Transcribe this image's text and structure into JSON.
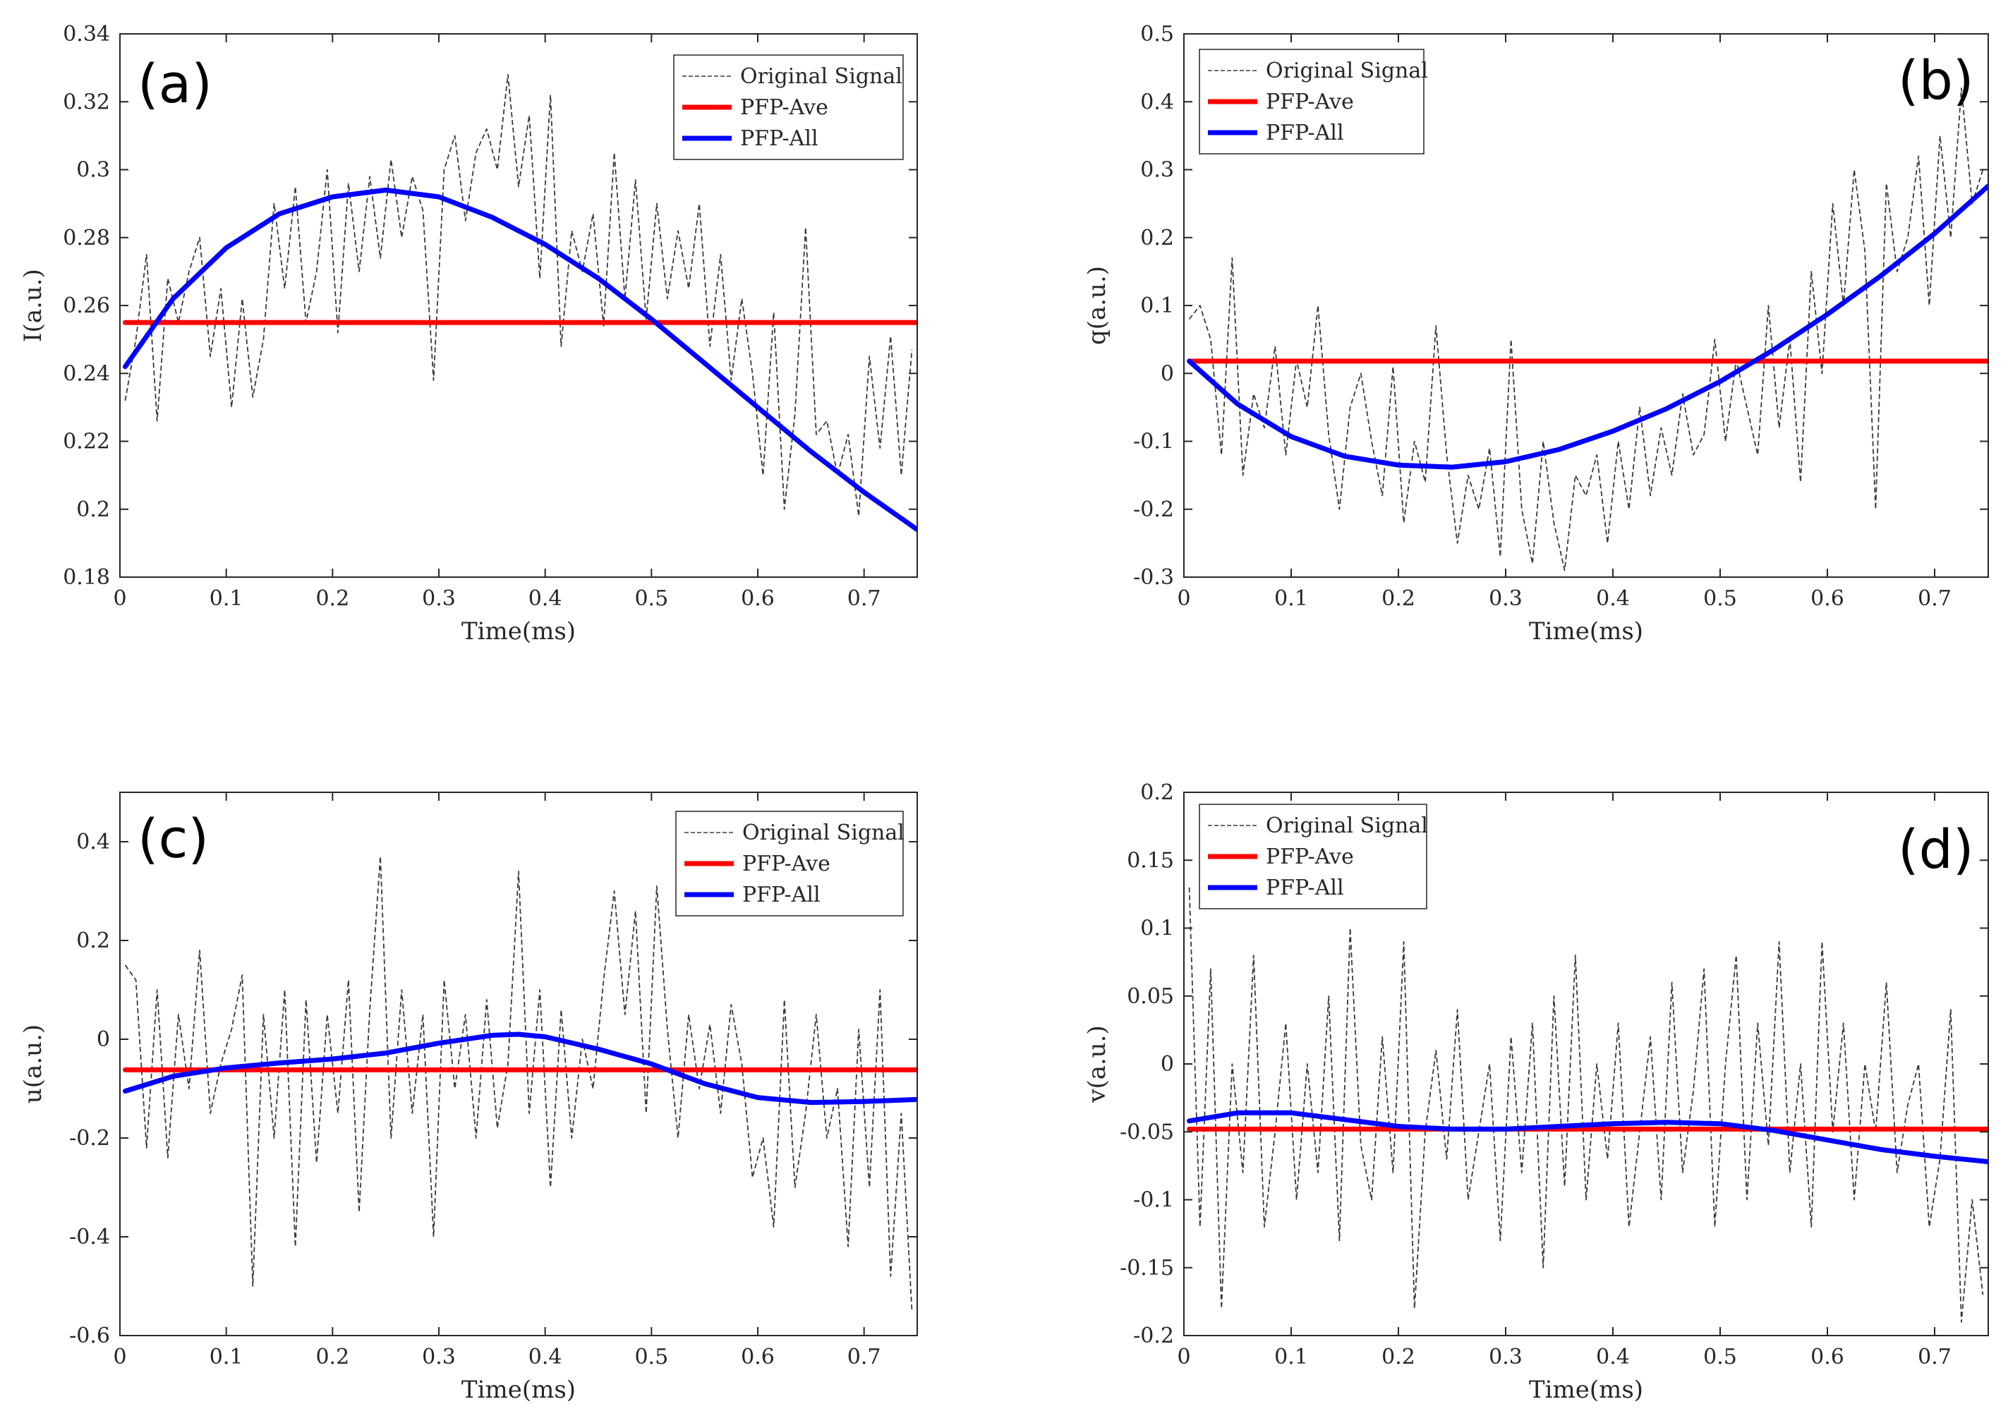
{
  "colors": {
    "signal": "#3a3a3a",
    "ave": "#ff0000",
    "all": "#0000ff",
    "axis": "#262626"
  },
  "chart_data": [
    {
      "type": "line",
      "panel_label": "(a)",
      "xlabel": "Time(ms)",
      "ylabel": "I(a.u.)",
      "xlim": [
        0,
        0.75
      ],
      "ylim": [
        0.18,
        0.34
      ],
      "xticks": [
        0,
        0.1,
        0.2,
        0.3,
        0.4,
        0.5,
        0.6,
        0.7
      ],
      "xtick_labels": [
        "0",
        "0.1",
        "0.2",
        "0.3",
        "0.4",
        "0.5",
        "0.6",
        "0.7"
      ],
      "yticks": [
        0.18,
        0.2,
        0.22,
        0.24,
        0.26,
        0.28,
        0.3,
        0.32,
        0.34
      ],
      "ytick_labels": [
        "0.18",
        "0.2",
        "0.22",
        "0.24",
        "0.26",
        "0.28",
        "0.3",
        "0.32",
        "0.34"
      ],
      "legend": [
        "Original Signal",
        "PFP-Ave",
        "PFP-All"
      ],
      "legend_position": "top-right",
      "series": [
        {
          "name": "Original Signal",
          "style": "dashed-thin",
          "x": [
            0.005,
            0.015,
            0.025,
            0.035,
            0.045,
            0.055,
            0.065,
            0.075,
            0.085,
            0.095,
            0.105,
            0.115,
            0.125,
            0.135,
            0.145,
            0.155,
            0.165,
            0.175,
            0.185,
            0.195,
            0.205,
            0.215,
            0.225,
            0.235,
            0.245,
            0.255,
            0.265,
            0.275,
            0.285,
            0.295,
            0.305,
            0.315,
            0.325,
            0.335,
            0.345,
            0.355,
            0.365,
            0.375,
            0.385,
            0.395,
            0.405,
            0.415,
            0.425,
            0.435,
            0.445,
            0.455,
            0.465,
            0.475,
            0.485,
            0.495,
            0.505,
            0.515,
            0.525,
            0.535,
            0.545,
            0.555,
            0.565,
            0.575,
            0.585,
            0.595,
            0.605,
            0.615,
            0.625,
            0.635,
            0.645,
            0.655,
            0.665,
            0.675,
            0.685,
            0.695,
            0.705,
            0.715,
            0.725,
            0.735,
            0.745
          ],
          "y": [
            0.232,
            0.25,
            0.275,
            0.226,
            0.268,
            0.255,
            0.27,
            0.28,
            0.245,
            0.265,
            0.23,
            0.262,
            0.233,
            0.25,
            0.29,
            0.265,
            0.295,
            0.255,
            0.27,
            0.3,
            0.252,
            0.296,
            0.27,
            0.298,
            0.274,
            0.303,
            0.28,
            0.298,
            0.288,
            0.238,
            0.3,
            0.31,
            0.285,
            0.305,
            0.312,
            0.3,
            0.328,
            0.295,
            0.316,
            0.268,
            0.322,
            0.248,
            0.282,
            0.27,
            0.287,
            0.254,
            0.305,
            0.262,
            0.297,
            0.256,
            0.29,
            0.262,
            0.282,
            0.265,
            0.29,
            0.248,
            0.275,
            0.238,
            0.262,
            0.24,
            0.21,
            0.258,
            0.2,
            0.228,
            0.283,
            0.222,
            0.226,
            0.21,
            0.222,
            0.198,
            0.245,
            0.218,
            0.251,
            0.21,
            0.247
          ]
        },
        {
          "name": "PFP-Ave",
          "style": "solid-thick",
          "x": [
            0.005,
            0.75
          ],
          "y": [
            0.255,
            0.255
          ]
        },
        {
          "name": "PFP-All",
          "style": "solid-thick",
          "x": [
            0.005,
            0.05,
            0.1,
            0.15,
            0.2,
            0.25,
            0.3,
            0.35,
            0.4,
            0.45,
            0.5,
            0.55,
            0.6,
            0.65,
            0.7,
            0.75
          ],
          "y": [
            0.242,
            0.262,
            0.277,
            0.287,
            0.292,
            0.294,
            0.292,
            0.286,
            0.278,
            0.268,
            0.256,
            0.243,
            0.23,
            0.217,
            0.205,
            0.194
          ]
        }
      ]
    },
    {
      "type": "line",
      "panel_label": "(b)",
      "xlabel": "Time(ms)",
      "ylabel": "q(a.u.)",
      "xlim": [
        0,
        0.75
      ],
      "ylim": [
        -0.3,
        0.5
      ],
      "xticks": [
        0,
        0.1,
        0.2,
        0.3,
        0.4,
        0.5,
        0.6,
        0.7
      ],
      "xtick_labels": [
        "0",
        "0.1",
        "0.2",
        "0.3",
        "0.4",
        "0.5",
        "0.6",
        "0.7"
      ],
      "yticks": [
        -0.3,
        -0.2,
        -0.1,
        0,
        0.1,
        0.2,
        0.3,
        0.4,
        0.5
      ],
      "ytick_labels": [
        "-0.3",
        "-0.2",
        "-0.1",
        "0",
        "0.1",
        "0.2",
        "0.3",
        "0.4",
        "0.5"
      ],
      "legend": [
        "Original Signal",
        "PFP-Ave",
        "PFP-All"
      ],
      "legend_position": "top-left",
      "series": [
        {
          "name": "Original Signal",
          "style": "dashed-thin",
          "x": [
            0.005,
            0.015,
            0.025,
            0.035,
            0.045,
            0.055,
            0.065,
            0.075,
            0.085,
            0.095,
            0.105,
            0.115,
            0.125,
            0.135,
            0.145,
            0.155,
            0.165,
            0.175,
            0.185,
            0.195,
            0.205,
            0.215,
            0.225,
            0.235,
            0.245,
            0.255,
            0.265,
            0.275,
            0.285,
            0.295,
            0.305,
            0.315,
            0.325,
            0.335,
            0.345,
            0.355,
            0.365,
            0.375,
            0.385,
            0.395,
            0.405,
            0.415,
            0.425,
            0.435,
            0.445,
            0.455,
            0.465,
            0.475,
            0.485,
            0.495,
            0.505,
            0.515,
            0.525,
            0.535,
            0.545,
            0.555,
            0.565,
            0.575,
            0.585,
            0.595,
            0.605,
            0.615,
            0.625,
            0.635,
            0.645,
            0.655,
            0.665,
            0.675,
            0.685,
            0.695,
            0.705,
            0.715,
            0.725,
            0.735,
            0.745
          ],
          "y": [
            0.08,
            0.1,
            0.05,
            -0.12,
            0.17,
            -0.15,
            -0.03,
            -0.08,
            0.04,
            -0.12,
            0.02,
            -0.05,
            0.1,
            -0.09,
            -0.2,
            -0.05,
            0.0,
            -0.1,
            -0.18,
            0.01,
            -0.22,
            -0.1,
            -0.16,
            0.07,
            -0.12,
            -0.25,
            -0.15,
            -0.2,
            -0.11,
            -0.27,
            0.05,
            -0.2,
            -0.28,
            -0.1,
            -0.22,
            -0.29,
            -0.15,
            -0.18,
            -0.12,
            -0.25,
            -0.1,
            -0.2,
            -0.05,
            -0.18,
            -0.08,
            -0.15,
            -0.03,
            -0.12,
            -0.09,
            0.05,
            -0.1,
            0.02,
            -0.05,
            -0.12,
            0.1,
            -0.08,
            0.05,
            -0.16,
            0.15,
            0.0,
            0.25,
            0.1,
            0.3,
            0.18,
            -0.2,
            0.28,
            0.15,
            0.2,
            0.32,
            0.1,
            0.35,
            0.2,
            0.42,
            0.25,
            0.3
          ]
        },
        {
          "name": "PFP-Ave",
          "style": "solid-thick",
          "x": [
            0.005,
            0.75
          ],
          "y": [
            0.018,
            0.018
          ]
        },
        {
          "name": "PFP-All",
          "style": "solid-thick",
          "x": [
            0.005,
            0.05,
            0.1,
            0.15,
            0.2,
            0.25,
            0.3,
            0.35,
            0.4,
            0.45,
            0.5,
            0.55,
            0.6,
            0.65,
            0.7,
            0.75
          ],
          "y": [
            0.018,
            -0.045,
            -0.093,
            -0.122,
            -0.135,
            -0.138,
            -0.13,
            -0.112,
            -0.085,
            -0.052,
            -0.012,
            0.035,
            0.087,
            0.144,
            0.206,
            0.276
          ]
        }
      ]
    },
    {
      "type": "line",
      "panel_label": "(c)",
      "xlabel": "Time(ms)",
      "ylabel": "u(a.u.)",
      "xlim": [
        0,
        0.75
      ],
      "ylim": [
        -0.6,
        0.5
      ],
      "xticks": [
        0,
        0.1,
        0.2,
        0.3,
        0.4,
        0.5,
        0.6,
        0.7
      ],
      "xtick_labels": [
        "0",
        "0.1",
        "0.2",
        "0.3",
        "0.4",
        "0.5",
        "0.6",
        "0.7"
      ],
      "yticks": [
        -0.6,
        -0.4,
        -0.2,
        0,
        0.2,
        0.4
      ],
      "ytick_labels": [
        "-0.6",
        "-0.4",
        "-0.2",
        "0",
        "0.2",
        "0.4"
      ],
      "legend": [
        "Original Signal",
        "PFP-Ave",
        "PFP-All"
      ],
      "legend_position": "top-right",
      "series": [
        {
          "name": "Original Signal",
          "style": "dashed-thin",
          "x": [
            0.005,
            0.015,
            0.025,
            0.035,
            0.045,
            0.055,
            0.065,
            0.075,
            0.085,
            0.095,
            0.105,
            0.115,
            0.125,
            0.135,
            0.145,
            0.155,
            0.165,
            0.175,
            0.185,
            0.195,
            0.205,
            0.215,
            0.225,
            0.235,
            0.245,
            0.255,
            0.265,
            0.275,
            0.285,
            0.295,
            0.305,
            0.315,
            0.325,
            0.335,
            0.345,
            0.355,
            0.365,
            0.375,
            0.385,
            0.395,
            0.405,
            0.415,
            0.425,
            0.435,
            0.445,
            0.455,
            0.465,
            0.475,
            0.485,
            0.495,
            0.505,
            0.515,
            0.525,
            0.535,
            0.545,
            0.555,
            0.565,
            0.575,
            0.585,
            0.595,
            0.605,
            0.615,
            0.625,
            0.635,
            0.645,
            0.655,
            0.665,
            0.675,
            0.685,
            0.695,
            0.705,
            0.715,
            0.725,
            0.735,
            0.745
          ],
          "y": [
            0.15,
            0.12,
            -0.22,
            0.1,
            -0.24,
            0.05,
            -0.1,
            0.18,
            -0.15,
            -0.05,
            0.02,
            0.13,
            -0.5,
            0.05,
            -0.2,
            0.1,
            -0.42,
            0.08,
            -0.25,
            0.05,
            -0.15,
            0.12,
            -0.35,
            0.06,
            0.37,
            -0.2,
            0.1,
            -0.15,
            0.05,
            -0.4,
            0.12,
            -0.1,
            0.05,
            -0.2,
            0.08,
            -0.18,
            -0.05,
            0.34,
            -0.15,
            0.1,
            -0.3,
            0.06,
            -0.2,
            0.0,
            -0.1,
            0.12,
            0.3,
            0.05,
            0.26,
            -0.15,
            0.31,
            0.02,
            -0.2,
            0.05,
            -0.1,
            0.03,
            -0.15,
            0.07,
            -0.05,
            -0.28,
            -0.2,
            -0.38,
            0.08,
            -0.3,
            -0.15,
            0.05,
            -0.2,
            -0.1,
            -0.42,
            0.02,
            -0.3,
            0.1,
            -0.48,
            -0.15,
            -0.55
          ]
        },
        {
          "name": "PFP-Ave",
          "style": "solid-thick",
          "x": [
            0.005,
            0.75
          ],
          "y": [
            -0.062,
            -0.062
          ]
        },
        {
          "name": "PFP-All",
          "style": "solid-thick",
          "x": [
            0.005,
            0.05,
            0.1,
            0.15,
            0.2,
            0.25,
            0.3,
            0.35,
            0.375,
            0.4,
            0.45,
            0.5,
            0.55,
            0.6,
            0.65,
            0.7,
            0.75
          ],
          "y": [
            -0.105,
            -0.075,
            -0.058,
            -0.048,
            -0.04,
            -0.028,
            -0.008,
            0.008,
            0.01,
            0.005,
            -0.02,
            -0.05,
            -0.09,
            -0.118,
            -0.128,
            -0.126,
            -0.122
          ]
        }
      ]
    },
    {
      "type": "line",
      "panel_label": "(d)",
      "xlabel": "Time(ms)",
      "ylabel": "v(a.u.)",
      "xlim": [
        0,
        0.75
      ],
      "ylim": [
        -0.2,
        0.2
      ],
      "xticks": [
        0,
        0.1,
        0.2,
        0.3,
        0.4,
        0.5,
        0.6,
        0.7
      ],
      "xtick_labels": [
        "0",
        "0.1",
        "0.2",
        "0.3",
        "0.4",
        "0.5",
        "0.6",
        "0.7"
      ],
      "yticks": [
        -0.2,
        -0.15,
        -0.1,
        -0.05,
        0,
        0.05,
        0.1,
        0.15,
        0.2
      ],
      "ytick_labels": [
        "-0.2",
        "-0.15",
        "-0.1",
        "-0.05",
        "0",
        "0.05",
        "0.1",
        "0.15",
        "0.2"
      ],
      "legend": [
        "Original Signal",
        "PFP-Ave",
        "PFP-All"
      ],
      "legend_position": "top-left",
      "series": [
        {
          "name": "Original Signal",
          "style": "dashed-thin",
          "x": [
            0.005,
            0.015,
            0.025,
            0.035,
            0.045,
            0.055,
            0.065,
            0.075,
            0.085,
            0.095,
            0.105,
            0.115,
            0.125,
            0.135,
            0.145,
            0.155,
            0.165,
            0.175,
            0.185,
            0.195,
            0.205,
            0.215,
            0.225,
            0.235,
            0.245,
            0.255,
            0.265,
            0.275,
            0.285,
            0.295,
            0.305,
            0.315,
            0.325,
            0.335,
            0.345,
            0.355,
            0.365,
            0.375,
            0.385,
            0.395,
            0.405,
            0.415,
            0.425,
            0.435,
            0.445,
            0.455,
            0.465,
            0.475,
            0.485,
            0.495,
            0.505,
            0.515,
            0.525,
            0.535,
            0.545,
            0.555,
            0.565,
            0.575,
            0.585,
            0.595,
            0.605,
            0.615,
            0.625,
            0.635,
            0.645,
            0.655,
            0.665,
            0.675,
            0.685,
            0.695,
            0.705,
            0.715,
            0.725,
            0.735,
            0.745
          ],
          "y": [
            0.13,
            -0.12,
            0.07,
            -0.18,
            0.0,
            -0.08,
            0.08,
            -0.12,
            -0.05,
            0.03,
            -0.1,
            0.0,
            -0.08,
            0.05,
            -0.13,
            0.1,
            -0.06,
            -0.1,
            0.02,
            -0.08,
            0.09,
            -0.18,
            -0.05,
            0.01,
            -0.07,
            0.04,
            -0.1,
            -0.05,
            0.0,
            -0.13,
            0.02,
            -0.08,
            0.03,
            -0.15,
            0.05,
            -0.09,
            0.08,
            -0.1,
            0.0,
            -0.07,
            0.03,
            -0.12,
            -0.05,
            0.02,
            -0.1,
            0.06,
            -0.08,
            -0.02,
            0.07,
            -0.12,
            0.0,
            0.08,
            -0.1,
            0.03,
            -0.06,
            0.09,
            -0.08,
            0.0,
            -0.12,
            0.09,
            -0.05,
            0.03,
            -0.1,
            0.0,
            -0.05,
            0.06,
            -0.08,
            -0.03,
            0.0,
            -0.12,
            -0.07,
            0.04,
            -0.19,
            -0.1,
            -0.17
          ]
        },
        {
          "name": "PFP-Ave",
          "style": "solid-thick",
          "x": [
            0.005,
            0.75
          ],
          "y": [
            -0.048,
            -0.048
          ]
        },
        {
          "name": "PFP-All",
          "style": "solid-thick",
          "x": [
            0.005,
            0.05,
            0.1,
            0.15,
            0.2,
            0.25,
            0.3,
            0.35,
            0.4,
            0.45,
            0.5,
            0.55,
            0.6,
            0.65,
            0.7,
            0.75
          ],
          "y": [
            -0.042,
            -0.036,
            -0.036,
            -0.041,
            -0.046,
            -0.048,
            -0.048,
            -0.046,
            -0.044,
            -0.043,
            -0.044,
            -0.049,
            -0.056,
            -0.063,
            -0.068,
            -0.072
          ]
        }
      ]
    }
  ]
}
